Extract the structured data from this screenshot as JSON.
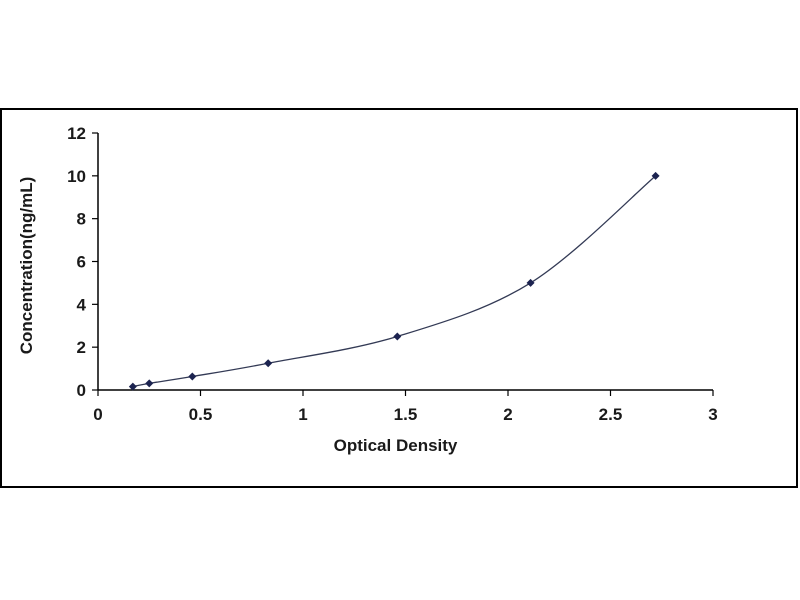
{
  "chart_data": {
    "type": "scatter",
    "title": "",
    "xlabel": "Optical Density",
    "ylabel": "Concentration(ng/mL)",
    "xlim": [
      0,
      3
    ],
    "ylim": [
      0,
      12
    ],
    "x_ticks": [
      "0",
      "0.5",
      "1",
      "1.5",
      "2",
      "2.5",
      "3"
    ],
    "y_ticks": [
      "0",
      "2",
      "4",
      "6",
      "8",
      "10",
      "12"
    ],
    "grid": false,
    "legend": "none",
    "series": [
      {
        "points": [
          {
            "x": 0.17,
            "y": 0.16
          },
          {
            "x": 0.25,
            "y": 0.31
          },
          {
            "x": 0.46,
            "y": 0.63
          },
          {
            "x": 0.83,
            "y": 1.25
          },
          {
            "x": 1.46,
            "y": 2.5
          },
          {
            "x": 2.11,
            "y": 5.0
          },
          {
            "x": 2.72,
            "y": 10.0
          }
        ],
        "fit": "smooth curve"
      }
    ],
    "colors": {
      "line": "#333a55",
      "marker": "#1c2350",
      "axis": "#000000"
    }
  }
}
